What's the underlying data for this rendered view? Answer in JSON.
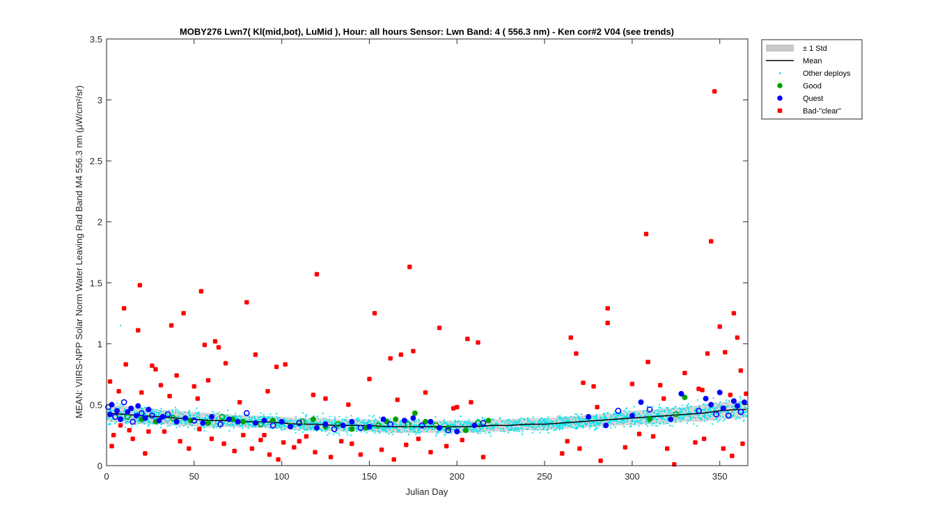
{
  "chart_data": {
    "type": "scatter",
    "title": "MOBY276   Lwn7( Kl(mid,bot), LuMid ),   Hour: all hours  Sensor: Lwn Band: 4 ( 556.3 nm)  - Ken cor#2 V04 (see trends)",
    "xlabel": "Julian Day",
    "ylabel": "MEAN: VIIRS-NPP Solar Norm Water Leaving Rad Band M4 556.3 nm (μW/cm²/sr)",
    "xlim": [
      0,
      366
    ],
    "ylim": [
      0,
      3.5
    ],
    "xticks": [
      0,
      50,
      100,
      150,
      200,
      250,
      300,
      350
    ],
    "yticks": [
      0,
      0.5,
      1,
      1.5,
      2,
      2.5,
      3,
      3.5
    ],
    "ytick_labels": [
      "0",
      "0.5",
      "1",
      "1.5",
      "2",
      "2.5",
      "3",
      "3.5"
    ],
    "legend_position": "outside-top-right",
    "legend": [
      {
        "label": "± 1 Std",
        "kind": "band",
        "color": "#c8c8c8"
      },
      {
        "label": "Mean",
        "kind": "line",
        "color": "#000000"
      },
      {
        "label": "Other deploys",
        "kind": "dot",
        "color": "#00e5ee"
      },
      {
        "label": "Good",
        "kind": "marker",
        "color": "#00a000"
      },
      {
        "label": "Quest",
        "kind": "marker",
        "color": "#0000ff"
      },
      {
        "label": "Bad-\"clear\"",
        "kind": "square",
        "color": "#ff0000"
      }
    ],
    "mean": {
      "x": [
        1,
        10,
        20,
        30,
        40,
        50,
        60,
        70,
        80,
        90,
        100,
        110,
        120,
        130,
        140,
        150,
        160,
        170,
        180,
        190,
        200,
        210,
        220,
        230,
        240,
        250,
        260,
        270,
        280,
        290,
        300,
        310,
        320,
        330,
        340,
        350,
        360,
        365
      ],
      "y": [
        0.43,
        0.42,
        0.41,
        0.4,
        0.39,
        0.38,
        0.37,
        0.37,
        0.36,
        0.36,
        0.35,
        0.34,
        0.34,
        0.33,
        0.33,
        0.33,
        0.32,
        0.32,
        0.32,
        0.32,
        0.32,
        0.32,
        0.33,
        0.33,
        0.34,
        0.34,
        0.35,
        0.36,
        0.37,
        0.38,
        0.39,
        0.4,
        0.41,
        0.42,
        0.43,
        0.45,
        0.46,
        0.46
      ]
    },
    "std": [
      0.07,
      0.07,
      0.07,
      0.06,
      0.06,
      0.06,
      0.06,
      0.05,
      0.05,
      0.05,
      0.05,
      0.05,
      0.05,
      0.05,
      0.05,
      0.05,
      0.05,
      0.05,
      0.05,
      0.05,
      0.05,
      0.05,
      0.05,
      0.05,
      0.05,
      0.05,
      0.05,
      0.05,
      0.05,
      0.05,
      0.06,
      0.06,
      0.06,
      0.06,
      0.07,
      0.07,
      0.07,
      0.07
    ],
    "series": [
      {
        "name": "Good",
        "x": [
          12,
          20,
          28,
          38,
          48,
          58,
          66,
          72,
          78,
          88,
          95,
          105,
          112,
          118,
          125,
          132,
          140,
          148,
          155,
          160,
          165,
          172,
          176,
          182,
          188,
          195,
          205,
          212,
          218,
          310,
          325,
          330
        ],
        "y": [
          0.4,
          0.38,
          0.36,
          0.39,
          0.37,
          0.35,
          0.4,
          0.38,
          0.36,
          0.34,
          0.37,
          0.33,
          0.36,
          0.38,
          0.32,
          0.34,
          0.3,
          0.31,
          0.33,
          0.36,
          0.38,
          0.34,
          0.43,
          0.36,
          0.33,
          0.31,
          0.29,
          0.35,
          0.37,
          0.38,
          0.42,
          0.56
        ]
      },
      {
        "name": "Quest",
        "x": [
          1,
          2,
          3,
          5,
          6,
          8,
          10,
          12,
          14,
          15,
          17,
          18,
          20,
          22,
          24,
          26,
          30,
          32,
          35,
          40,
          45,
          50,
          55,
          60,
          65,
          70,
          75,
          80,
          85,
          90,
          95,
          100,
          105,
          110,
          120,
          125,
          130,
          135,
          140,
          145,
          150,
          158,
          162,
          170,
          175,
          180,
          185,
          190,
          195,
          200,
          210,
          215,
          275,
          285,
          292,
          300,
          305,
          310,
          322,
          328,
          338,
          342,
          345,
          348,
          350,
          352,
          355,
          358,
          360,
          362,
          364
        ],
        "y": [
          0.48,
          0.42,
          0.5,
          0.4,
          0.45,
          0.38,
          0.52,
          0.44,
          0.47,
          0.36,
          0.41,
          0.49,
          0.43,
          0.39,
          0.46,
          0.41,
          0.37,
          0.4,
          0.42,
          0.36,
          0.39,
          0.37,
          0.35,
          0.4,
          0.34,
          0.38,
          0.36,
          0.43,
          0.35,
          0.37,
          0.33,
          0.36,
          0.32,
          0.35,
          0.31,
          0.34,
          0.3,
          0.33,
          0.36,
          0.31,
          0.32,
          0.38,
          0.34,
          0.37,
          0.39,
          0.33,
          0.36,
          0.31,
          0.29,
          0.28,
          0.33,
          0.35,
          0.4,
          0.33,
          0.45,
          0.41,
          0.52,
          0.46,
          0.38,
          0.59,
          0.45,
          0.55,
          0.5,
          0.42,
          0.6,
          0.47,
          0.41,
          0.53,
          0.49,
          0.44,
          0.52
        ]
      },
      {
        "name": "Bad-\"clear\"",
        "x": [
          2,
          4,
          7,
          10,
          11,
          13,
          18,
          19,
          24,
          26,
          28,
          31,
          37,
          40,
          44,
          50,
          54,
          56,
          58,
          62,
          64,
          68,
          80,
          85,
          90,
          97,
          102,
          110,
          120,
          125,
          140,
          150,
          153,
          162,
          168,
          173,
          175,
          182,
          190,
          200,
          206,
          212,
          260,
          265,
          268,
          272,
          278,
          286,
          286,
          300,
          308,
          309,
          316,
          324,
          330,
          338,
          343,
          345,
          347,
          350,
          353,
          356,
          358,
          360,
          362,
          365,
          3,
          8,
          15,
          22,
          33,
          42,
          47,
          53,
          60,
          67,
          73,
          78,
          83,
          88,
          93,
          98,
          101,
          107,
          114,
          119,
          128,
          134,
          145,
          157,
          164,
          171,
          178,
          185,
          194,
          203,
          215,
          263,
          270,
          282,
          296,
          304,
          312,
          320,
          336,
          341,
          352,
          357,
          363,
          20,
          36,
          52,
          76,
          92,
          118,
          138,
          166,
          198,
          208,
          280,
          318,
          340
        ],
        "y": [
          0.69,
          0.25,
          0.61,
          1.29,
          0.83,
          0.29,
          1.11,
          1.48,
          0.28,
          0.82,
          0.79,
          0.66,
          1.15,
          0.74,
          1.25,
          0.65,
          1.43,
          0.99,
          0.7,
          1.02,
          0.97,
          0.84,
          1.34,
          0.91,
          0.25,
          0.81,
          0.83,
          0.2,
          1.57,
          0.55,
          0.18,
          0.71,
          1.25,
          0.88,
          0.91,
          1.63,
          0.94,
          0.6,
          1.13,
          0.48,
          1.04,
          1.01,
          0.1,
          1.05,
          0.92,
          0.68,
          0.65,
          1.29,
          1.17,
          0.67,
          1.9,
          0.85,
          0.66,
          0.01,
          0.76,
          0.63,
          0.92,
          1.84,
          3.07,
          1.14,
          0.93,
          0.58,
          1.25,
          1.05,
          0.78,
          0.59,
          0.16,
          0.33,
          0.22,
          0.1,
          0.28,
          0.2,
          0.14,
          0.3,
          0.22,
          0.18,
          0.12,
          0.25,
          0.14,
          0.21,
          0.09,
          0.05,
          0.19,
          0.15,
          0.24,
          0.11,
          0.07,
          0.2,
          0.09,
          0.13,
          0.05,
          0.17,
          0.22,
          0.11,
          0.16,
          0.21,
          0.07,
          0.2,
          0.14,
          0.04,
          0.15,
          0.26,
          0.24,
          0.14,
          0.19,
          0.22,
          0.14,
          0.08,
          0.18,
          0.6,
          0.57,
          0.55,
          0.52,
          0.61,
          0.58,
          0.5,
          0.54,
          0.47,
          0.52,
          0.48,
          0.55,
          0.62
        ]
      }
    ]
  }
}
